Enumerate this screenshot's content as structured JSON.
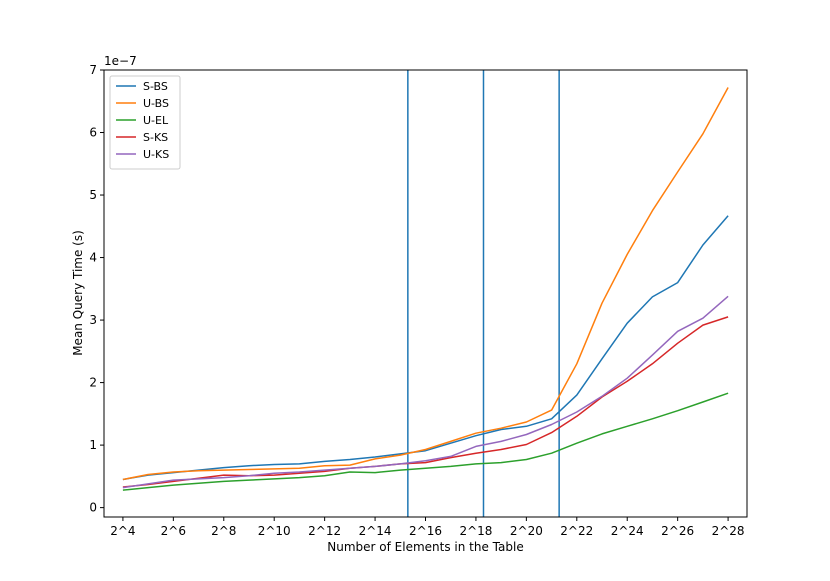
{
  "chart_data": {
    "type": "line",
    "xlabel": "Number of Elements in the Table",
    "ylabel": "Mean Query Time (s)",
    "y_offset_label": "1e−7",
    "x_exponents": [
      4,
      5,
      6,
      7,
      8,
      9,
      10,
      11,
      12,
      13,
      14,
      15,
      16,
      17,
      18,
      19,
      20,
      21,
      22,
      23,
      24,
      25,
      26,
      27,
      28
    ],
    "xlim": [
      3.25,
      28.75
    ],
    "ylim": [
      -0.15,
      7.0
    ],
    "x_ticks": [
      4,
      6,
      8,
      10,
      12,
      14,
      16,
      18,
      20,
      22,
      24,
      26,
      28
    ],
    "x_tick_labels": [
      "2^4",
      "2^6",
      "2^8",
      "2^10",
      "2^12",
      "2^14",
      "2^16",
      "2^18",
      "2^20",
      "2^22",
      "2^24",
      "2^26",
      "2^28"
    ],
    "y_ticks": [
      0,
      1,
      2,
      3,
      4,
      5,
      6,
      7
    ],
    "y_tick_labels": [
      "0",
      "1",
      "2",
      "3",
      "4",
      "5",
      "6",
      "7"
    ],
    "vertical_lines": [
      15.3,
      18.3,
      21.3
    ],
    "vertical_line_color": "#1f77b4",
    "legend_position": "top-left",
    "grid": false,
    "series": [
      {
        "name": "S-BS",
        "color": "#1f77b4",
        "values": [
          0.45,
          0.52,
          0.56,
          0.6,
          0.64,
          0.67,
          0.69,
          0.7,
          0.74,
          0.77,
          0.81,
          0.86,
          0.91,
          1.03,
          1.15,
          1.25,
          1.3,
          1.42,
          1.8,
          2.38,
          2.95,
          3.37,
          3.6,
          4.2,
          4.67
        ]
      },
      {
        "name": "U-BS",
        "color": "#ff7f0e",
        "values": [
          0.45,
          0.53,
          0.57,
          0.59,
          0.6,
          0.61,
          0.62,
          0.63,
          0.67,
          0.68,
          0.78,
          0.84,
          0.93,
          1.06,
          1.19,
          1.27,
          1.37,
          1.56,
          2.3,
          3.27,
          4.05,
          4.75,
          5.37,
          5.98,
          6.72
        ]
      },
      {
        "name": "U-EL",
        "color": "#2ca02c",
        "values": [
          0.28,
          0.32,
          0.36,
          0.39,
          0.42,
          0.44,
          0.46,
          0.48,
          0.51,
          0.57,
          0.56,
          0.6,
          0.63,
          0.66,
          0.7,
          0.72,
          0.77,
          0.87,
          1.03,
          1.18,
          1.3,
          1.42,
          1.55,
          1.69,
          1.83
        ]
      },
      {
        "name": "S-KS",
        "color": "#d62728",
        "values": [
          0.33,
          0.37,
          0.42,
          0.47,
          0.52,
          0.51,
          0.52,
          0.55,
          0.58,
          0.63,
          0.66,
          0.7,
          0.72,
          0.8,
          0.87,
          0.93,
          1.01,
          1.2,
          1.46,
          1.77,
          2.02,
          2.3,
          2.63,
          2.92,
          3.05
        ]
      },
      {
        "name": "U-KS",
        "color": "#9467bd",
        "values": [
          0.32,
          0.38,
          0.44,
          0.46,
          0.48,
          0.51,
          0.55,
          0.57,
          0.6,
          0.63,
          0.66,
          0.7,
          0.75,
          0.82,
          0.98,
          1.06,
          1.17,
          1.33,
          1.53,
          1.78,
          2.07,
          2.44,
          2.82,
          3.03,
          3.38
        ]
      }
    ]
  }
}
